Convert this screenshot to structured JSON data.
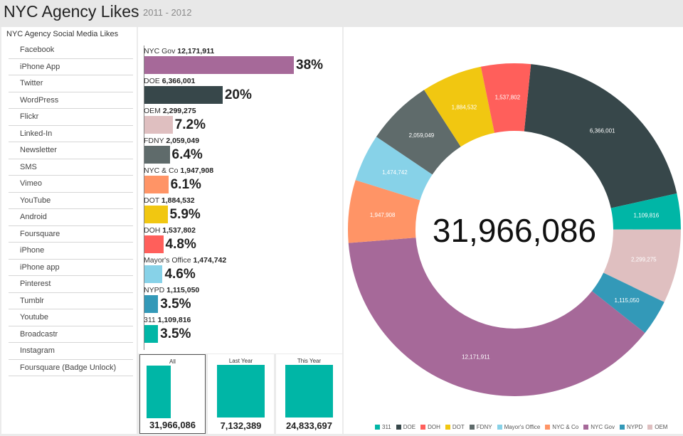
{
  "header": {
    "title": "NYC Agency Likes",
    "subtitle": "2011 - 2012"
  },
  "sidebar": {
    "title": "NYC Agency Social Media Likes",
    "items": [
      {
        "label": "Facebook"
      },
      {
        "label": "iPhone App"
      },
      {
        "label": "Twitter"
      },
      {
        "label": "WordPress"
      },
      {
        "label": "Flickr"
      },
      {
        "label": "Linked-In"
      },
      {
        "label": "Newsletter"
      },
      {
        "label": "SMS"
      },
      {
        "label": "Vimeo"
      },
      {
        "label": "YouTube"
      },
      {
        "label": "Android"
      },
      {
        "label": "Foursquare"
      },
      {
        "label": "iPhone"
      },
      {
        "label": "iPhone app"
      },
      {
        "label": "Pinterest"
      },
      {
        "label": "Tumblr"
      },
      {
        "label": "Youtube"
      },
      {
        "label": "Broadcastr"
      },
      {
        "label": "Instagram"
      },
      {
        "label": "Foursquare (Badge Unlock)"
      }
    ]
  },
  "colors": {
    "NYC Gov": "#a66999",
    "DOE": "#37474a",
    "OEM": "#dfbfc0",
    "FDNY": "#5f6b6b",
    "NYC & Co": "#ff9466",
    "DOT": "#f1c711",
    "DOH": "#ff5f5b",
    "Mayor's Office": "#87d2e8",
    "NYPD": "#3399b8",
    "311": "#00b6a6"
  },
  "period_tiles": [
    {
      "label": "All",
      "value": "31,966,086",
      "selected": true
    },
    {
      "label": "Last Year",
      "value": "7,132,389",
      "selected": false
    },
    {
      "label": "This Year",
      "value": "24,833,697",
      "selected": false
    }
  ],
  "chart_data": [
    {
      "type": "bar",
      "orientation": "horizontal",
      "categories": [
        "NYC Gov",
        "DOE",
        "OEM",
        "FDNY",
        "NYC & Co",
        "DOT",
        "DOH",
        "Mayor's Office",
        "NYPD",
        "311"
      ],
      "values": [
        12171911,
        6366001,
        2299275,
        2059049,
        1947908,
        1884532,
        1537802,
        1474742,
        1115050,
        1109816
      ],
      "value_labels": [
        "12,171,911",
        "6,366,001",
        "2,299,275",
        "2,059,049",
        "1,947,908",
        "1,884,532",
        "1,537,802",
        "1,474,742",
        "1,115,050",
        "1,109,816"
      ],
      "percent_labels": [
        "38%",
        "20%",
        "7.2%",
        "6.4%",
        "6.1%",
        "5.9%",
        "4.8%",
        "4.6%",
        "3.5%",
        "3.5%"
      ]
    },
    {
      "type": "bar",
      "categories": [
        "All",
        "Last Year",
        "This Year"
      ],
      "values": [
        31966086,
        7132389,
        24833697
      ]
    },
    {
      "type": "pie",
      "variant": "donut",
      "center_label": "31,966,086",
      "slices_clockwise_from_top": [
        {
          "name": "DOE",
          "value": 6366001,
          "label": "6,366,001"
        },
        {
          "name": "311",
          "value": 1109816,
          "label": "1,109,816"
        },
        {
          "name": "OEM",
          "value": 2299275,
          "label": "2,299,275"
        },
        {
          "name": "NYPD",
          "value": 1115050,
          "label": "1,115,050"
        },
        {
          "name": "NYC Gov",
          "value": 12171911,
          "label": "12,171,911"
        },
        {
          "name": "NYC & Co",
          "value": 1947908,
          "label": "1,947,908"
        },
        {
          "name": "Mayor's Office",
          "value": 1474742,
          "label": "1,474,742"
        },
        {
          "name": "FDNY",
          "value": 2059049,
          "label": "2,059,049"
        },
        {
          "name": "DOT",
          "value": 1884532,
          "label": "1,884,532"
        },
        {
          "name": "DOH",
          "value": 1537802,
          "label": "1,537,802"
        }
      ],
      "start_angle_deg": 5.7,
      "legend": [
        "311",
        "DOE",
        "DOH",
        "DOT",
        "FDNY",
        "Mayor's Office",
        "NYC & Co",
        "NYC Gov",
        "NYPD",
        "OEM"
      ],
      "legend_position": "bottom"
    }
  ]
}
